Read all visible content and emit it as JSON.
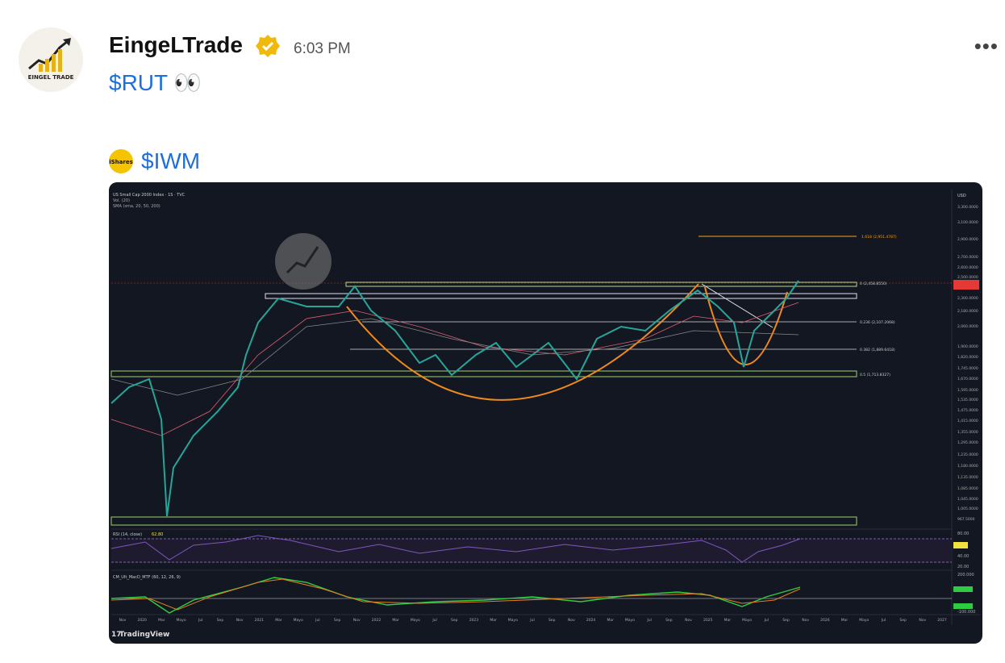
{
  "post": {
    "author": "EingeLTrade",
    "time": "6:03 PM",
    "text": "$RUT 👀",
    "avatar_text": "EINGEL TRADE",
    "tag_icon": "iShares",
    "tag": "$IWM",
    "more": "•••"
  },
  "image": {
    "header": [
      "US Small Cap 2000 Index · 1S · TVC",
      "Vol. (20)",
      "SMA (sma, 20, 50, 200)"
    ],
    "currency": "USD",
    "price_labels": [
      "3,300.0000",
      "3,100.0000",
      "2,900.0000",
      "2,700.0000",
      "2,600.0000",
      "2,500.0000",
      "2,300.0000",
      "2,180.0000",
      "2,060.0000",
      "1,900.0000",
      "1,820.0000",
      "1,745.0000",
      "1,670.0000",
      "1,595.0000",
      "1,535.0000",
      "1,475.0000",
      "1,415.0000",
      "1,355.0000",
      "1,295.0000",
      "1,235.0000",
      "1,180.0000",
      "1,135.0000",
      "1,085.0000",
      "1,045.0000",
      "1,005.0000",
      "967.5000"
    ],
    "fib_labels": [
      "1.618 (2,951.4787)",
      "0 (2,458.8550)",
      "0.236 (2,107.2068)",
      "0.382 (1,889.6418)",
      "0.5 (1,713.8327)"
    ],
    "rsi_label": "RSI (14, close)",
    "rsi_value": "62.80",
    "rsi_axis": [
      "80.00",
      "40.00",
      "20.00"
    ],
    "macd_label": "CM_Ult_MacD_MTF (60, 12, 26, 9)",
    "macd_axis": [
      "200.000",
      "-100.000"
    ],
    "x_labels": [
      "Nov",
      "2020",
      "Mar",
      "Mayo",
      "Jul",
      "Sep",
      "Nov",
      "2021",
      "Mar",
      "Mayo",
      "Jul",
      "Sep",
      "Nov",
      "2022",
      "Mar",
      "Mayo",
      "Jul",
      "Sep",
      "2023",
      "Mar",
      "Mayo",
      "Jul",
      "Sep",
      "Nov",
      "2024",
      "Mar",
      "Mayo",
      "Jul",
      "Sep",
      "Nov",
      "2025",
      "Mar",
      "Mayo",
      "Jul",
      "Sep",
      "Nov",
      "2026",
      "Mar",
      "Mayo",
      "Jul",
      "Sep",
      "Nov",
      "2027"
    ],
    "brand": "TradingView"
  }
}
